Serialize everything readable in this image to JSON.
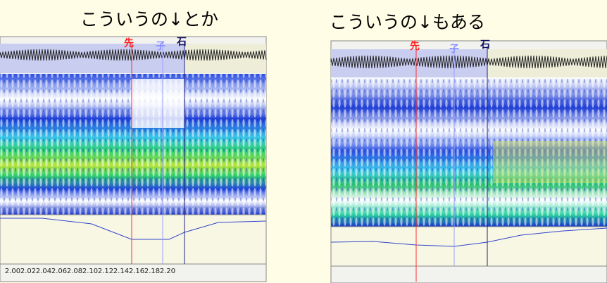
{
  "panels": [
    {
      "caption": "こういうの↓とか",
      "markers": [
        "先",
        "子",
        "石"
      ],
      "ticks": [
        "2.00",
        "2.02",
        "2.04",
        "2.06",
        "2.08",
        "2.10",
        "2.12",
        "2.14",
        "2.16",
        "2.18",
        "2.20"
      ]
    },
    {
      "caption": "こういうの↓もある",
      "markers": [
        "先",
        "子",
        "石"
      ]
    }
  ]
}
